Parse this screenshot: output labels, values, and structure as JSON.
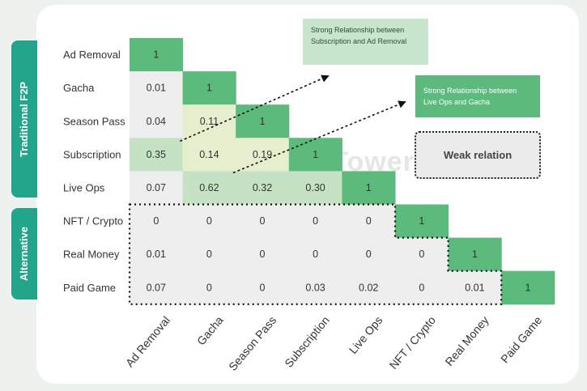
{
  "groups": {
    "traditional": "Traditional F2P",
    "alternative": "Alternative"
  },
  "annotations": {
    "callout_1": "Strong Relationship between Subscription and Ad Removal",
    "callout_2": "Strong Relationship between Live Ops and Gacha",
    "weak": "Weak relation"
  },
  "watermark": "SensorTower",
  "colors": {
    "diagonal": "#5cba7d",
    "strong": "#c5e2c4",
    "medium": "#e6efcd",
    "weak_cell": "#eeeeee",
    "group_tab": "#23a58c"
  },
  "chart_data": {
    "type": "heatmap",
    "rows": [
      "Ad Removal",
      "Gacha",
      "Season Pass",
      "Subscription",
      "Live Ops",
      "NFT / Crypto",
      "Real Money",
      "Paid Game"
    ],
    "columns": [
      "Ad Removal",
      "Gacha",
      "Season Pass",
      "Subscription",
      "Live Ops",
      "NFT / Crypto",
      "Real Money",
      "Paid Game"
    ],
    "values": [
      [
        "1"
      ],
      [
        "0.01",
        "1"
      ],
      [
        "0.04",
        "0.11",
        "1"
      ],
      [
        "0.35",
        "0.14",
        "0.19",
        "1"
      ],
      [
        "0.07",
        "0.62",
        "0.32",
        "0.30",
        "1"
      ],
      [
        "0",
        "0",
        "0",
        "0",
        "0",
        "1"
      ],
      [
        "0.01",
        "0",
        "0",
        "0",
        "0",
        "0",
        "1"
      ],
      [
        "0.07",
        "0",
        "0",
        "0.03",
        "0.02",
        "0",
        "0.01",
        "1"
      ]
    ]
  }
}
